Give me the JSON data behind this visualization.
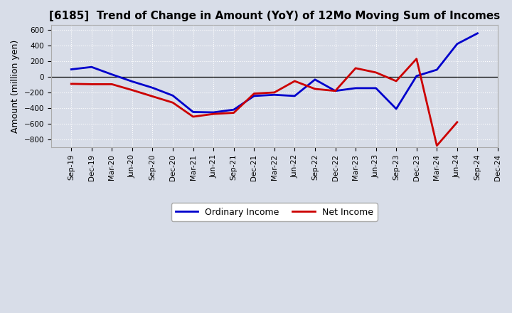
{
  "title": "[6185]  Trend of Change in Amount (YoY) of 12Mo Moving Sum of Incomes",
  "ylabel": "Amount (million yen)",
  "x_labels": [
    "Sep-19",
    "Dec-19",
    "Mar-20",
    "Jun-20",
    "Sep-20",
    "Dec-20",
    "Mar-21",
    "Jun-21",
    "Sep-21",
    "Dec-21",
    "Mar-22",
    "Jun-22",
    "Sep-22",
    "Dec-22",
    "Mar-23",
    "Jun-23",
    "Sep-23",
    "Dec-23",
    "Mar-24",
    "Jun-24",
    "Sep-24",
    "Dec-24"
  ],
  "ordinary_income": [
    95,
    125,
    30,
    -60,
    -140,
    -240,
    -450,
    -455,
    -420,
    -245,
    -230,
    -245,
    -35,
    -180,
    -145,
    -145,
    -410,
    10,
    90,
    420,
    555,
    null
  ],
  "net_income": [
    -90,
    -95,
    -95,
    -170,
    -250,
    -330,
    -510,
    -475,
    -460,
    -215,
    -200,
    -55,
    -155,
    -180,
    110,
    55,
    -55,
    230,
    -880,
    -580,
    null,
    null
  ],
  "ordinary_income_color": "#0000cc",
  "net_income_color": "#cc0000",
  "ylim": [
    -900,
    660
  ],
  "yticks": [
    -800,
    -600,
    -400,
    -200,
    0,
    200,
    400,
    600
  ],
  "legend_ordinary": "Ordinary Income",
  "legend_net": "Net Income",
  "bg_color": "#d8dde8",
  "plot_bg_color": "#d8dde8",
  "grid_major_color": "#ffffff",
  "grid_minor_color": "#c8cdd8",
  "line_width": 2.0,
  "title_fontsize": 11,
  "tick_fontsize": 7.5,
  "ylabel_fontsize": 9
}
